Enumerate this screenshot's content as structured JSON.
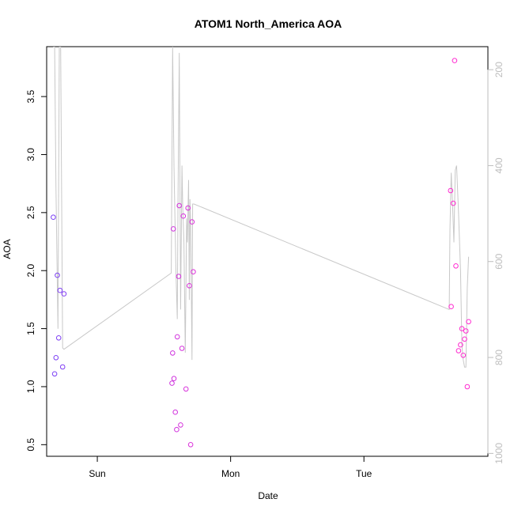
{
  "chart_data": {
    "type": "scatter",
    "title": "ATOM1 North_America AOA",
    "xlabel": "Date",
    "ylabel": "AOA",
    "x_ticks": [
      {
        "label": "Sun",
        "value": 0
      },
      {
        "label": "Mon",
        "value": 1
      },
      {
        "label": "Tue",
        "value": 2
      }
    ],
    "xlim": [
      -0.38,
      2.93
    ],
    "ylim": [
      0.4,
      3.93
    ],
    "y_ticks": [
      0.5,
      1.0,
      1.5,
      2.0,
      2.5,
      3.0,
      3.5
    ],
    "y_tick_labels": [
      "0.5",
      "1.0",
      "1.5",
      "2.0",
      "2.5",
      "3.0",
      "3.5"
    ],
    "y2lim": [
      1006,
      152
    ],
    "y2_ticks": [
      200,
      400,
      600,
      800,
      1000
    ],
    "y2_tick_labels": [
      "200",
      "400",
      "600",
      "800",
      "1000"
    ],
    "grid": false,
    "series": [
      {
        "role": "points",
        "color_start": "#7a3ff5",
        "color_end": "#ff2bd0",
        "points": [
          {
            "x": -0.33,
            "y": 2.46
          },
          {
            "x": -0.32,
            "y": 1.11
          },
          {
            "x": -0.31,
            "y": 1.25
          },
          {
            "x": -0.3,
            "y": 1.96
          },
          {
            "x": -0.29,
            "y": 1.42
          },
          {
            "x": -0.28,
            "y": 1.83
          },
          {
            "x": -0.26,
            "y": 1.17
          },
          {
            "x": -0.25,
            "y": 1.8
          },
          {
            "x": 0.56,
            "y": 1.03
          },
          {
            "x": 0.565,
            "y": 1.29
          },
          {
            "x": 0.57,
            "y": 2.36
          },
          {
            "x": 0.575,
            "y": 1.07
          },
          {
            "x": 0.585,
            "y": 0.78
          },
          {
            "x": 0.595,
            "y": 0.63
          },
          {
            "x": 0.6,
            "y": 1.43
          },
          {
            "x": 0.61,
            "y": 1.95
          },
          {
            "x": 0.615,
            "y": 2.56
          },
          {
            "x": 0.625,
            "y": 0.67
          },
          {
            "x": 0.635,
            "y": 1.33
          },
          {
            "x": 0.645,
            "y": 2.47
          },
          {
            "x": 0.665,
            "y": 0.98
          },
          {
            "x": 0.68,
            "y": 2.54
          },
          {
            "x": 0.69,
            "y": 1.87
          },
          {
            "x": 0.7,
            "y": 0.5
          },
          {
            "x": 0.71,
            "y": 2.42
          },
          {
            "x": 0.72,
            "y": 1.99
          },
          {
            "x": 2.65,
            "y": 2.69
          },
          {
            "x": 2.655,
            "y": 1.69
          },
          {
            "x": 2.67,
            "y": 2.58
          },
          {
            "x": 2.68,
            "y": 3.81
          },
          {
            "x": 2.69,
            "y": 2.04
          },
          {
            "x": 2.71,
            "y": 1.31
          },
          {
            "x": 2.725,
            "y": 1.36
          },
          {
            "x": 2.735,
            "y": 1.5
          },
          {
            "x": 2.745,
            "y": 1.27
          },
          {
            "x": 2.755,
            "y": 1.41
          },
          {
            "x": 2.765,
            "y": 1.48
          },
          {
            "x": 2.775,
            "y": 1.0
          },
          {
            "x": 2.785,
            "y": 1.56
          }
        ]
      },
      {
        "role": "pressure-line",
        "axis": "right",
        "color": "#c8c8c8",
        "points": [
          {
            "x": -0.33,
            "y": 152
          },
          {
            "x": -0.32,
            "y": 152
          },
          {
            "x": -0.31,
            "y": 450
          },
          {
            "x": -0.295,
            "y": 740
          },
          {
            "x": -0.285,
            "y": 152
          },
          {
            "x": -0.275,
            "y": 152
          },
          {
            "x": -0.26,
            "y": 780
          },
          {
            "x": -0.25,
            "y": 783
          },
          {
            "x": 0.555,
            "y": 624
          },
          {
            "x": 0.565,
            "y": 152
          },
          {
            "x": 0.575,
            "y": 400
          },
          {
            "x": 0.59,
            "y": 620
          },
          {
            "x": 0.6,
            "y": 720
          },
          {
            "x": 0.605,
            "y": 475
          },
          {
            "x": 0.615,
            "y": 165
          },
          {
            "x": 0.625,
            "y": 700
          },
          {
            "x": 0.635,
            "y": 400
          },
          {
            "x": 0.64,
            "y": 480
          },
          {
            "x": 0.65,
            "y": 560
          },
          {
            "x": 0.66,
            "y": 790
          },
          {
            "x": 0.67,
            "y": 510
          },
          {
            "x": 0.675,
            "y": 560
          },
          {
            "x": 0.685,
            "y": 430
          },
          {
            "x": 0.69,
            "y": 680
          },
          {
            "x": 0.695,
            "y": 470
          },
          {
            "x": 0.7,
            "y": 520
          },
          {
            "x": 0.71,
            "y": 805
          },
          {
            "x": 0.715,
            "y": 480
          },
          {
            "x": 0.725,
            "y": 480
          },
          {
            "x": 2.64,
            "y": 700
          },
          {
            "x": 2.645,
            "y": 535
          },
          {
            "x": 2.655,
            "y": 415
          },
          {
            "x": 2.665,
            "y": 480
          },
          {
            "x": 2.675,
            "y": 560
          },
          {
            "x": 2.685,
            "y": 410
          },
          {
            "x": 2.695,
            "y": 400
          },
          {
            "x": 2.71,
            "y": 500
          },
          {
            "x": 2.725,
            "y": 620
          },
          {
            "x": 2.735,
            "y": 775
          },
          {
            "x": 2.745,
            "y": 805
          },
          {
            "x": 2.755,
            "y": 820
          },
          {
            "x": 2.765,
            "y": 820
          },
          {
            "x": 2.775,
            "y": 655
          },
          {
            "x": 2.785,
            "y": 590
          }
        ]
      }
    ]
  }
}
